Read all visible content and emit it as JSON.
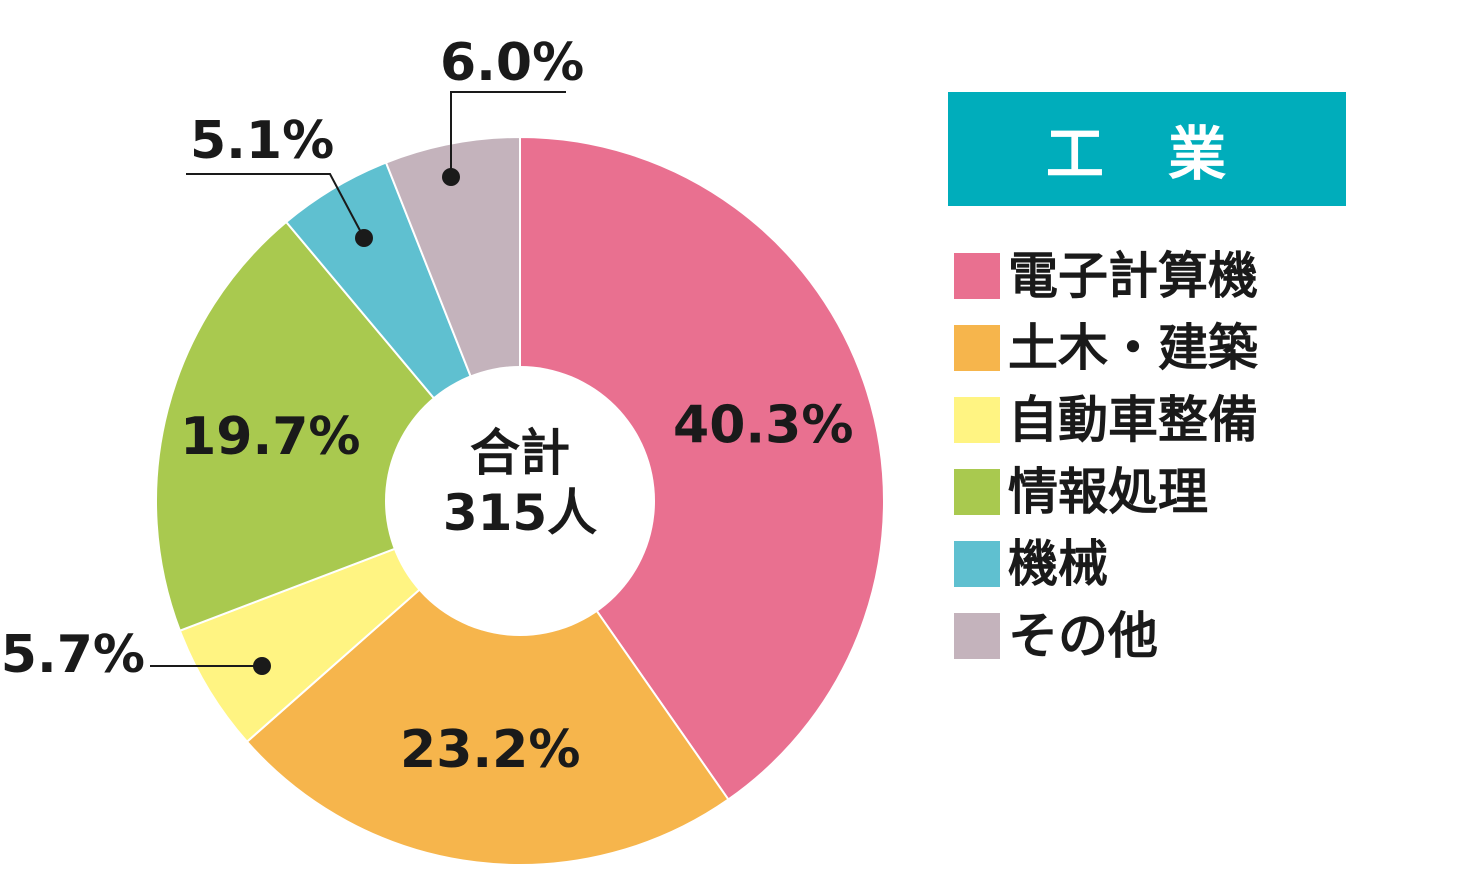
{
  "chart_data": {
    "type": "pie",
    "title": "工 業",
    "center_label": [
      "合計",
      "315人"
    ],
    "legend_placement": "right",
    "slices": [
      {
        "name": "電子計算機",
        "value": 40.3,
        "label": "40.3%",
        "color": "#e97090"
      },
      {
        "name": "土木・建築",
        "value": 23.2,
        "label": "23.2%",
        "color": "#f6b54c"
      },
      {
        "name": "自動車整備",
        "value": 5.7,
        "label": "5.7%",
        "color": "#fff482"
      },
      {
        "name": "情報処理",
        "value": 19.7,
        "label": "19.7%",
        "color": "#a9c94f"
      },
      {
        "name": "機械",
        "value": 5.1,
        "label": "5.1%",
        "color": "#5fc0d0"
      },
      {
        "name": "その他",
        "value": 6.0,
        "label": "6.0%",
        "color": "#c4b3bc"
      }
    ]
  },
  "colors": {
    "title_bar": "#00adbb",
    "text": "#1a1a1a"
  }
}
